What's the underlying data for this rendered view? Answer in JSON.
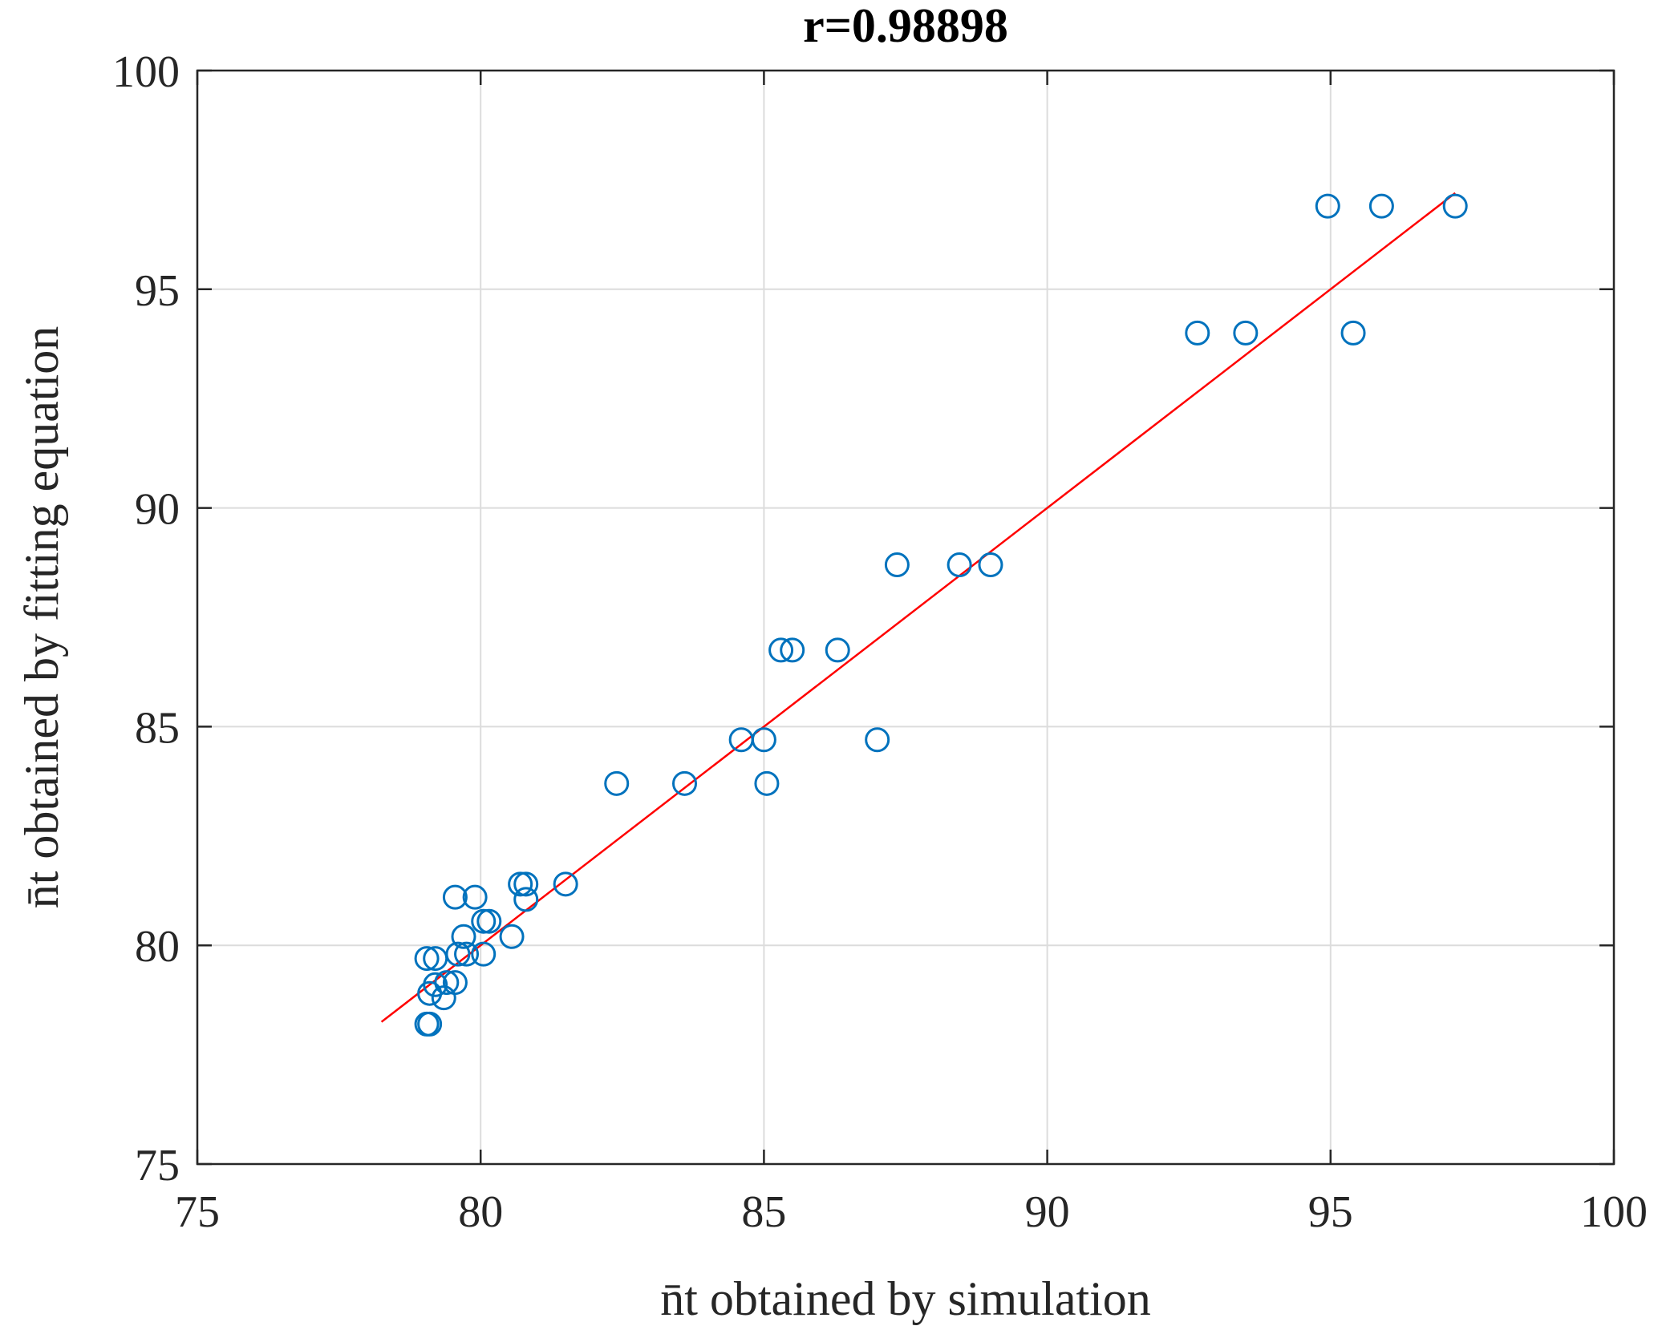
{
  "chart_data": {
    "type": "scatter",
    "title": "r=0.98898",
    "xlabel": "n̄t obtained by simulation",
    "ylabel": "n̄t obtained by fitting equation",
    "xlim": [
      75,
      100
    ],
    "ylim": [
      75,
      100
    ],
    "xticks": [
      "75",
      "80",
      "85",
      "90",
      "95",
      "100"
    ],
    "yticks": [
      "75",
      "80",
      "85",
      "90",
      "95",
      "100"
    ],
    "grid": true,
    "marker_color": "#0072BD",
    "fit_line_color": "#FF0000",
    "points": [
      {
        "x": 79.1,
        "y": 78.2
      },
      {
        "x": 79.05,
        "y": 78.2
      },
      {
        "x": 79.1,
        "y": 78.9
      },
      {
        "x": 79.2,
        "y": 79.1
      },
      {
        "x": 79.35,
        "y": 78.8
      },
      {
        "x": 79.4,
        "y": 79.15
      },
      {
        "x": 79.05,
        "y": 79.7
      },
      {
        "x": 79.2,
        "y": 79.7
      },
      {
        "x": 79.6,
        "y": 79.8
      },
      {
        "x": 79.55,
        "y": 79.15
      },
      {
        "x": 79.7,
        "y": 80.2
      },
      {
        "x": 79.75,
        "y": 79.8
      },
      {
        "x": 80.05,
        "y": 79.8
      },
      {
        "x": 80.05,
        "y": 80.55
      },
      {
        "x": 80.15,
        "y": 80.55
      },
      {
        "x": 80.55,
        "y": 80.2
      },
      {
        "x": 79.55,
        "y": 81.1
      },
      {
        "x": 79.9,
        "y": 81.1
      },
      {
        "x": 80.7,
        "y": 81.4
      },
      {
        "x": 80.8,
        "y": 81.4
      },
      {
        "x": 80.8,
        "y": 81.05
      },
      {
        "x": 81.5,
        "y": 81.4
      },
      {
        "x": 82.4,
        "y": 83.7
      },
      {
        "x": 83.6,
        "y": 83.7
      },
      {
        "x": 85.05,
        "y": 83.7
      },
      {
        "x": 84.6,
        "y": 84.7
      },
      {
        "x": 85.0,
        "y": 84.7
      },
      {
        "x": 87.0,
        "y": 84.7
      },
      {
        "x": 85.3,
        "y": 86.75
      },
      {
        "x": 85.5,
        "y": 86.75
      },
      {
        "x": 86.3,
        "y": 86.75
      },
      {
        "x": 87.35,
        "y": 88.7
      },
      {
        "x": 88.45,
        "y": 88.7
      },
      {
        "x": 89.0,
        "y": 88.7
      },
      {
        "x": 92.65,
        "y": 94.0
      },
      {
        "x": 93.5,
        "y": 94.0
      },
      {
        "x": 95.4,
        "y": 94.0
      },
      {
        "x": 94.95,
        "y": 96.9
      },
      {
        "x": 95.9,
        "y": 96.9
      },
      {
        "x": 97.2,
        "y": 96.9
      }
    ],
    "fit_line": {
      "x": [
        78.25,
        97.2
      ],
      "y": [
        78.25,
        97.2
      ]
    }
  }
}
